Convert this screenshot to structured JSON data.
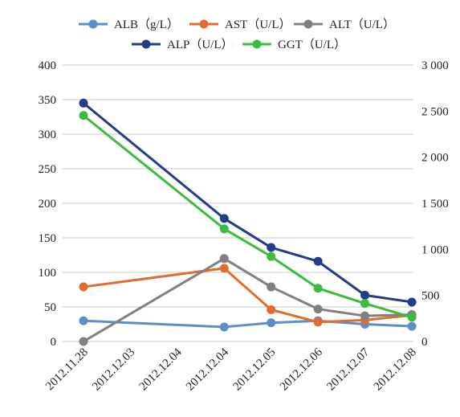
{
  "chart_data": {
    "type": "line",
    "categories": [
      "2012.11.28",
      "2012.12.03",
      "2012.12.04",
      "2012.12.04",
      "2012.12.05",
      "2012.12.06",
      "2012.12.07",
      "2012.12.08"
    ],
    "y_left": {
      "min": 0,
      "max": 400,
      "ticks": [
        "0",
        "50",
        "100",
        "150",
        "200",
        "250",
        "300",
        "350",
        "400"
      ],
      "tick_values": [
        0,
        50,
        100,
        150,
        200,
        250,
        300,
        350,
        400
      ]
    },
    "y_right": {
      "min": 0,
      "max": 3000,
      "ticks": [
        "0",
        "500",
        "1 000",
        "1 500",
        "2 000",
        "2 500",
        "3 000"
      ],
      "tick_values": [
        0,
        500,
        1000,
        1500,
        2000,
        2500,
        3000
      ]
    },
    "grid": true,
    "legend_position": "top",
    "series": [
      {
        "name": "ALB（g/L）",
        "color": "#5b8fc9",
        "axis": "left",
        "points": [
          [
            0,
            30
          ],
          [
            3,
            21
          ],
          [
            4,
            27
          ],
          [
            5,
            30
          ],
          [
            6,
            25
          ],
          [
            7,
            22
          ]
        ]
      },
      {
        "name": "AST（U/L）",
        "color": "#e06c2e",
        "axis": "left",
        "points": [
          [
            0,
            79
          ],
          [
            3,
            106
          ],
          [
            4,
            46
          ],
          [
            5,
            28
          ],
          [
            6,
            31
          ],
          [
            7,
            38
          ]
        ]
      },
      {
        "name": "ALT（U/L）",
        "color": "#808080",
        "axis": "left",
        "points": [
          [
            0,
            0
          ],
          [
            3,
            120
          ],
          [
            4,
            79
          ],
          [
            5,
            47
          ],
          [
            6,
            37
          ],
          [
            7,
            39
          ]
        ]
      },
      {
        "name": "ALP（U/L）",
        "color": "#263a8a",
        "axis": "left",
        "points": [
          [
            0,
            345
          ],
          [
            3,
            178
          ],
          [
            4,
            136
          ],
          [
            5,
            116
          ],
          [
            6,
            67
          ],
          [
            7,
            57
          ]
        ]
      },
      {
        "name": "GGT（U/L）",
        "color": "#3dbb3d",
        "axis": "left",
        "points": [
          [
            0,
            327
          ],
          [
            3,
            163
          ],
          [
            4,
            123
          ],
          [
            5,
            77
          ],
          [
            6,
            55
          ],
          [
            7,
            35
          ]
        ]
      }
    ]
  }
}
